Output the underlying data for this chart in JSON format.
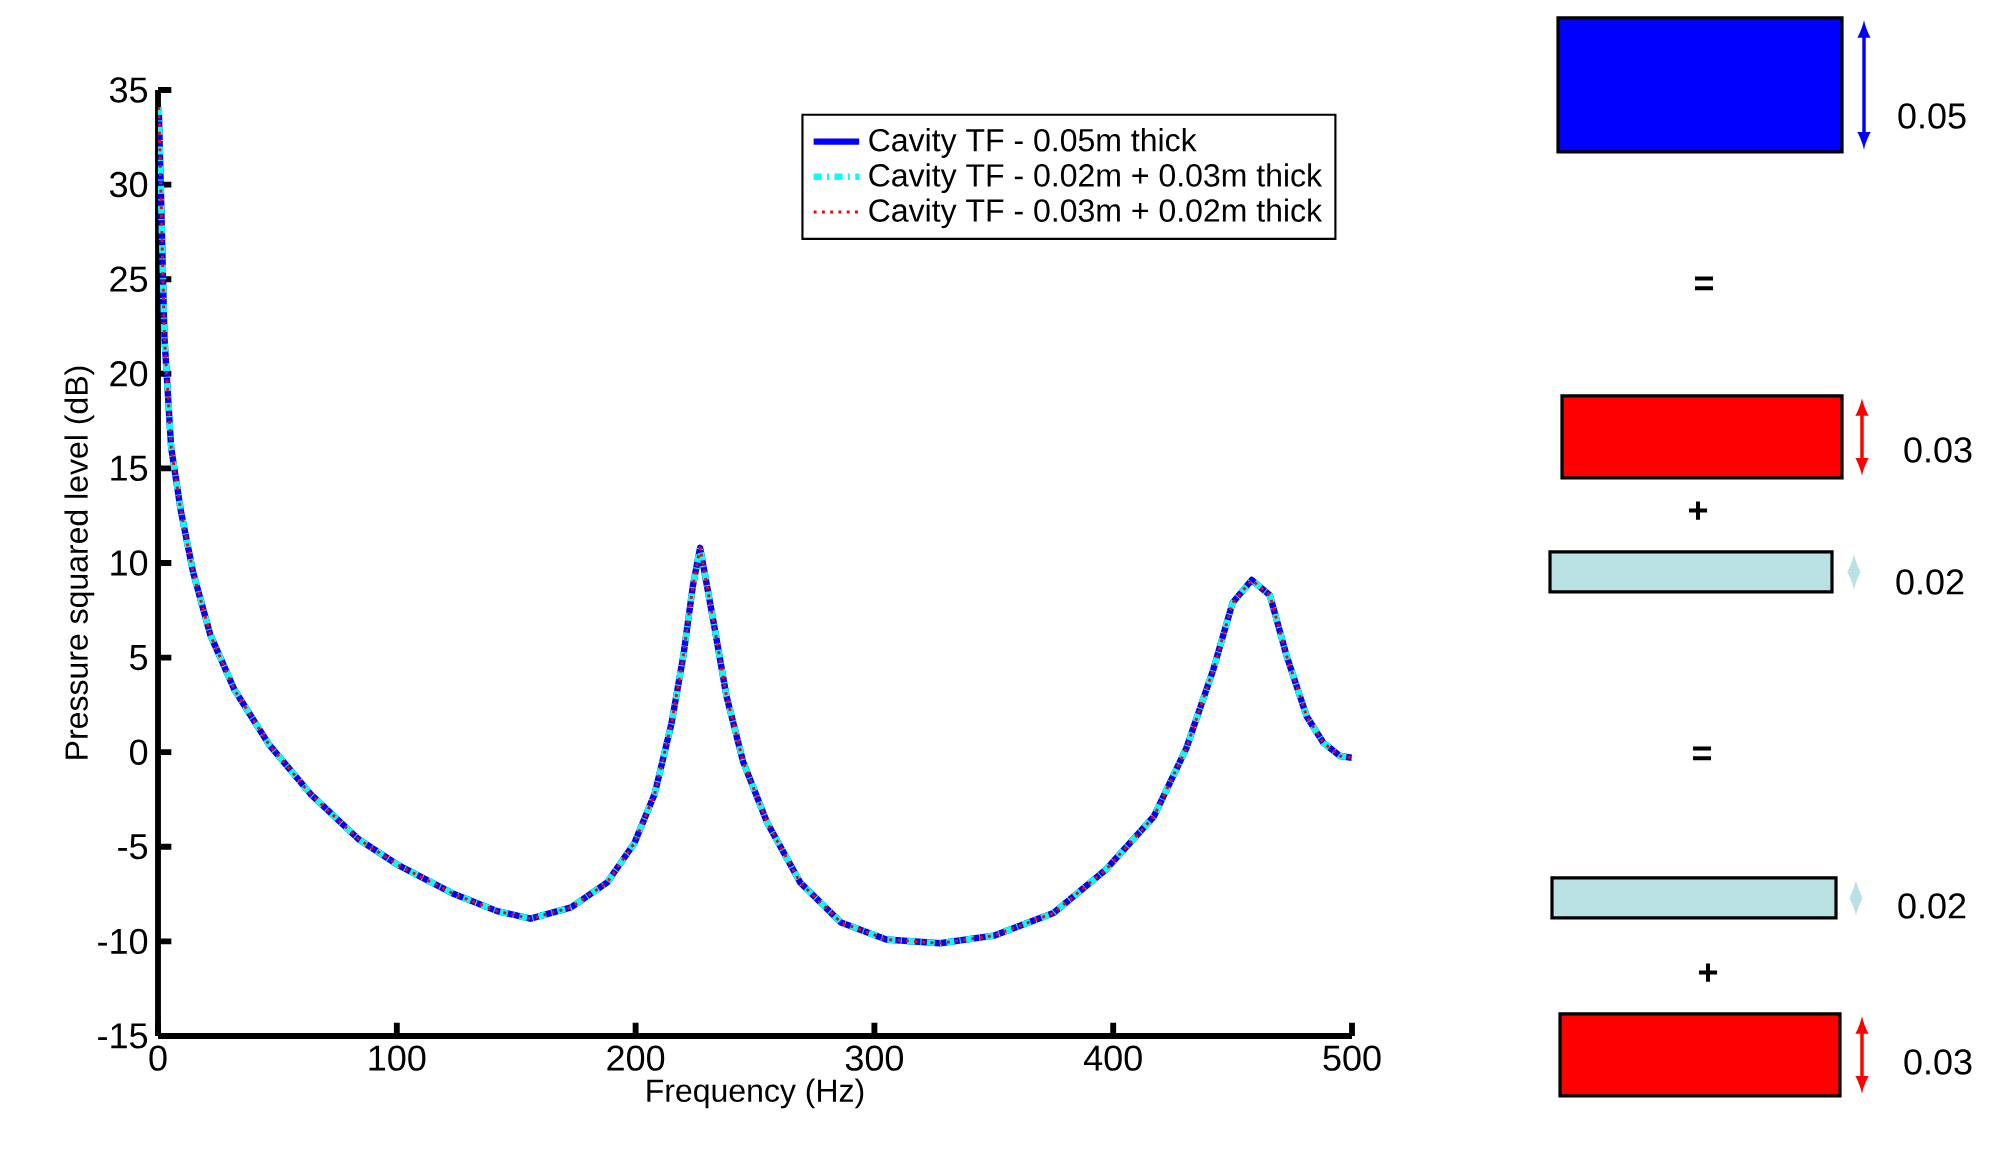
{
  "chart_data": {
    "type": "line",
    "xlabel": "Frequency (Hz)",
    "ylabel": "Pressure squared level (dB)",
    "x": [
      0.3,
      1.3,
      2.7,
      5.5,
      9.5,
      14.7,
      21.9,
      32,
      46.5,
      63.8,
      84,
      101,
      124,
      142,
      156,
      173,
      188,
      199.5,
      208,
      215,
      220,
      224,
      227,
      232.6,
      238,
      245,
      255,
      269,
      286,
      305,
      327.5,
      350,
      375,
      397,
      417,
      430.6,
      442,
      450,
      458,
      465.6,
      472.6,
      481,
      488,
      495,
      500
    ],
    "series": [
      {
        "name": "Cavity TF - 0.05m thick",
        "color": "#0000ff",
        "line_style": "solid",
        "values": [
          34.1,
          29.2,
          21.9,
          16.1,
          12.8,
          9.5,
          6.2,
          3.3,
          0.4,
          -2.2,
          -4.6,
          -6.0,
          -7.5,
          -8.4,
          -8.8,
          -8.2,
          -6.9,
          -4.8,
          -2.2,
          1.5,
          5.1,
          8.8,
          10.8,
          6.9,
          3.0,
          -0.5,
          -3.7,
          -6.9,
          -9.0,
          -9.9,
          -10.1,
          -9.7,
          -8.5,
          -6.2,
          -3.4,
          0.2,
          4.4,
          7.9,
          9.1,
          8.3,
          5.1,
          1.9,
          0.5,
          -0.2,
          -0.3
        ]
      },
      {
        "name": "Cavity TF - 0.02m + 0.03m thick",
        "color": "#00ffff",
        "line_style": "dashdot",
        "values": [
          34.1,
          29.2,
          21.9,
          16.1,
          12.8,
          9.5,
          6.2,
          3.3,
          0.4,
          -2.2,
          -4.6,
          -6.0,
          -7.5,
          -8.4,
          -8.8,
          -8.2,
          -6.9,
          -4.8,
          -2.2,
          1.5,
          5.1,
          8.8,
          10.8,
          6.9,
          3.0,
          -0.5,
          -3.7,
          -6.9,
          -9.0,
          -9.9,
          -10.1,
          -9.7,
          -8.5,
          -6.2,
          -3.4,
          0.2,
          4.4,
          7.9,
          9.1,
          8.3,
          5.1,
          1.9,
          0.5,
          -0.2,
          -0.3
        ]
      },
      {
        "name": "Cavity TF - 0.03m + 0.02m thick",
        "color": "#ff0000",
        "line_style": "dotted",
        "values": [
          34.1,
          29.2,
          21.9,
          16.1,
          12.8,
          9.5,
          6.2,
          3.3,
          0.4,
          -2.2,
          -4.6,
          -6.0,
          -7.5,
          -8.4,
          -8.8,
          -8.2,
          -6.9,
          -4.8,
          -2.2,
          1.5,
          5.1,
          8.8,
          10.8,
          6.9,
          3.0,
          -0.5,
          -3.7,
          -6.9,
          -9.0,
          -9.9,
          -10.1,
          -9.7,
          -8.5,
          -6.2,
          -3.4,
          0.2,
          4.4,
          7.9,
          9.1,
          8.3,
          5.1,
          1.9,
          0.5,
          -0.2,
          -0.3
        ]
      }
    ],
    "xlim": [
      0,
      500
    ],
    "xticks": [
      0,
      100,
      200,
      300,
      400,
      500
    ],
    "ylim": [
      -15,
      35
    ],
    "yticks": [
      -15,
      -10,
      -5,
      0,
      5,
      10,
      15,
      20,
      25,
      30,
      35
    ],
    "grid": false,
    "legend": "top right",
    "marker": "none",
    "annotations": [
      "0.05",
      "=",
      "0.03",
      "+",
      "0.02",
      "=",
      "0.02",
      "+",
      "0.03"
    ]
  }
}
